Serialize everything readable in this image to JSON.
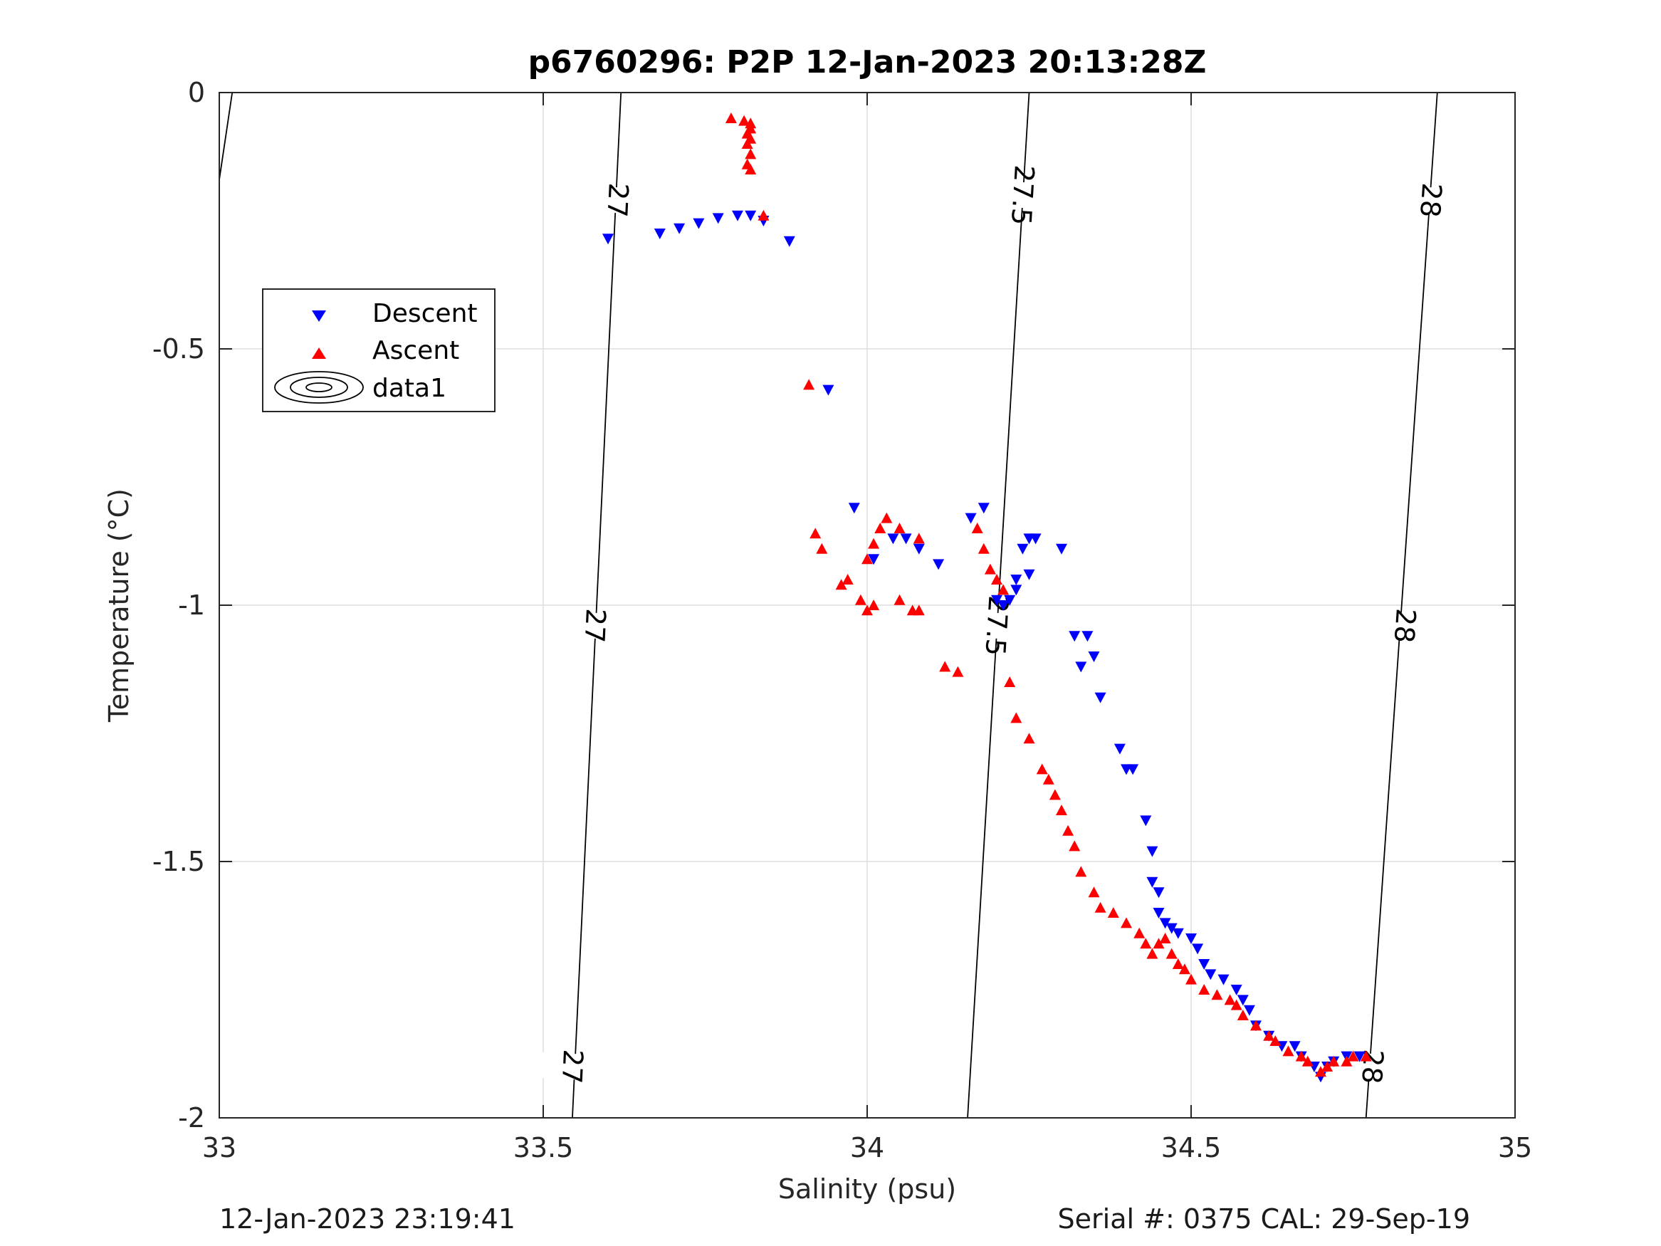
{
  "chart_data": {
    "type": "scatter",
    "title": "p6760296: P2P 12-Jan-2023 20:13:28Z",
    "xlabel": "Salinity (psu)",
    "ylabel": "Temperature (°C)",
    "xlim": [
      33,
      35
    ],
    "ylim": [
      -2,
      0
    ],
    "x_ticks": [
      "33",
      "33.5",
      "34",
      "34.5",
      "35"
    ],
    "y_ticks": [
      "0",
      "-0.5",
      "-1",
      "-1.5",
      "-2"
    ],
    "grid": true,
    "legend_position": "upper-left",
    "legend": [
      "Descent",
      "Ascent",
      "data1"
    ],
    "series": [
      {
        "name": "Descent",
        "marker": "triangle-down",
        "color": "#0000ff",
        "points": [
          [
            33.6,
            -0.285
          ],
          [
            33.68,
            -0.275
          ],
          [
            33.71,
            -0.265
          ],
          [
            33.74,
            -0.255
          ],
          [
            33.77,
            -0.245
          ],
          [
            33.8,
            -0.24
          ],
          [
            33.82,
            -0.24
          ],
          [
            33.84,
            -0.25
          ],
          [
            33.88,
            -0.29
          ],
          [
            33.94,
            -0.58
          ],
          [
            33.98,
            -0.81
          ],
          [
            34.01,
            -0.91
          ],
          [
            34.04,
            -0.87
          ],
          [
            34.06,
            -0.87
          ],
          [
            34.08,
            -0.89
          ],
          [
            34.11,
            -0.92
          ],
          [
            34.16,
            -0.83
          ],
          [
            34.18,
            -0.81
          ],
          [
            34.2,
            -0.99
          ],
          [
            34.21,
            -1.0
          ],
          [
            34.22,
            -0.99
          ],
          [
            34.23,
            -0.97
          ],
          [
            34.23,
            -0.95
          ],
          [
            34.24,
            -0.89
          ],
          [
            34.25,
            -0.87
          ],
          [
            34.25,
            -0.94
          ],
          [
            34.26,
            -0.87
          ],
          [
            34.3,
            -0.89
          ],
          [
            34.32,
            -1.06
          ],
          [
            34.33,
            -1.12
          ],
          [
            34.34,
            -1.06
          ],
          [
            34.35,
            -1.1
          ],
          [
            34.36,
            -1.18
          ],
          [
            34.39,
            -1.28
          ],
          [
            34.4,
            -1.32
          ],
          [
            34.41,
            -1.32
          ],
          [
            34.43,
            -1.42
          ],
          [
            34.44,
            -1.48
          ],
          [
            34.44,
            -1.54
          ],
          [
            34.45,
            -1.56
          ],
          [
            34.45,
            -1.6
          ],
          [
            34.46,
            -1.62
          ],
          [
            34.47,
            -1.63
          ],
          [
            34.48,
            -1.64
          ],
          [
            34.5,
            -1.65
          ],
          [
            34.51,
            -1.67
          ],
          [
            34.52,
            -1.7
          ],
          [
            34.53,
            -1.72
          ],
          [
            34.55,
            -1.73
          ],
          [
            34.57,
            -1.75
          ],
          [
            34.58,
            -1.77
          ],
          [
            34.59,
            -1.79
          ],
          [
            34.6,
            -1.82
          ],
          [
            34.62,
            -1.84
          ],
          [
            34.64,
            -1.86
          ],
          [
            34.66,
            -1.86
          ],
          [
            34.67,
            -1.88
          ],
          [
            34.69,
            -1.9
          ],
          [
            34.7,
            -1.92
          ],
          [
            34.71,
            -1.9
          ],
          [
            34.72,
            -1.89
          ],
          [
            34.74,
            -1.88
          ],
          [
            34.76,
            -1.88
          ]
        ]
      },
      {
        "name": "Ascent",
        "marker": "triangle-up",
        "color": "#ff0000",
        "points": [
          [
            33.79,
            -0.05
          ],
          [
            33.81,
            -0.055
          ],
          [
            33.82,
            -0.06
          ],
          [
            33.82,
            -0.07
          ],
          [
            33.815,
            -0.08
          ],
          [
            33.82,
            -0.09
          ],
          [
            33.815,
            -0.1
          ],
          [
            33.82,
            -0.12
          ],
          [
            33.815,
            -0.14
          ],
          [
            33.82,
            -0.15
          ],
          [
            33.84,
            -0.24
          ],
          [
            33.91,
            -0.57
          ],
          [
            33.92,
            -0.86
          ],
          [
            33.93,
            -0.89
          ],
          [
            33.96,
            -0.96
          ],
          [
            33.97,
            -0.95
          ],
          [
            33.99,
            -0.99
          ],
          [
            34.0,
            -1.01
          ],
          [
            34.01,
            -1.0
          ],
          [
            34.0,
            -0.91
          ],
          [
            34.01,
            -0.88
          ],
          [
            34.02,
            -0.85
          ],
          [
            34.03,
            -0.83
          ],
          [
            34.05,
            -0.85
          ],
          [
            34.05,
            -0.99
          ],
          [
            34.07,
            -1.01
          ],
          [
            34.08,
            -1.01
          ],
          [
            34.08,
            -0.87
          ],
          [
            34.12,
            -1.12
          ],
          [
            34.14,
            -1.13
          ],
          [
            34.17,
            -0.85
          ],
          [
            34.18,
            -0.89
          ],
          [
            34.19,
            -0.93
          ],
          [
            34.2,
            -0.95
          ],
          [
            34.21,
            -0.97
          ],
          [
            34.22,
            -1.15
          ],
          [
            34.23,
            -1.22
          ],
          [
            34.25,
            -1.26
          ],
          [
            34.27,
            -1.32
          ],
          [
            34.28,
            -1.34
          ],
          [
            34.29,
            -1.37
          ],
          [
            34.3,
            -1.4
          ],
          [
            34.31,
            -1.44
          ],
          [
            34.32,
            -1.47
          ],
          [
            34.33,
            -1.52
          ],
          [
            34.35,
            -1.56
          ],
          [
            34.36,
            -1.59
          ],
          [
            34.38,
            -1.6
          ],
          [
            34.4,
            -1.62
          ],
          [
            34.42,
            -1.64
          ],
          [
            34.43,
            -1.66
          ],
          [
            34.44,
            -1.68
          ],
          [
            34.45,
            -1.66
          ],
          [
            34.46,
            -1.65
          ],
          [
            34.47,
            -1.68
          ],
          [
            34.48,
            -1.7
          ],
          [
            34.49,
            -1.71
          ],
          [
            34.5,
            -1.73
          ],
          [
            34.52,
            -1.75
          ],
          [
            34.54,
            -1.76
          ],
          [
            34.56,
            -1.77
          ],
          [
            34.57,
            -1.78
          ],
          [
            34.58,
            -1.8
          ],
          [
            34.6,
            -1.82
          ],
          [
            34.62,
            -1.84
          ],
          [
            34.63,
            -1.85
          ],
          [
            34.65,
            -1.87
          ],
          [
            34.67,
            -1.88
          ],
          [
            34.68,
            -1.89
          ],
          [
            34.7,
            -1.91
          ],
          [
            34.71,
            -1.9
          ],
          [
            34.72,
            -1.89
          ],
          [
            34.74,
            -1.89
          ],
          [
            34.75,
            -1.88
          ],
          [
            34.77,
            -1.88
          ]
        ]
      }
    ],
    "contours": [
      {
        "level": "27",
        "points": [
          [
            33.545,
            -2.0
          ],
          [
            33.62,
            0.0
          ]
        ],
        "labels": [
          [
            33.545,
            -1.9
          ],
          [
            33.58,
            -1.04
          ],
          [
            33.615,
            -0.21
          ]
        ]
      },
      {
        "level": "27.5",
        "points": [
          [
            34.155,
            -2.0
          ],
          [
            34.25,
            0.0
          ]
        ],
        "labels": [
          [
            34.2,
            -1.04
          ],
          [
            34.24,
            -0.2
          ]
        ]
      },
      {
        "level": "28",
        "points": [
          [
            34.77,
            -2.0
          ],
          [
            34.88,
            0.0
          ]
        ],
        "labels": [
          [
            34.78,
            -1.9
          ],
          [
            34.83,
            -1.04
          ],
          [
            34.87,
            -0.21
          ]
        ]
      },
      {
        "level": "",
        "points": [
          [
            33.0,
            -0.17
          ],
          [
            33.02,
            0.0
          ]
        ],
        "labels": []
      }
    ]
  },
  "footer": {
    "left": "12-Jan-2023 23:19:41",
    "right": "Serial #: 0375  CAL: 29-Sep-19"
  }
}
